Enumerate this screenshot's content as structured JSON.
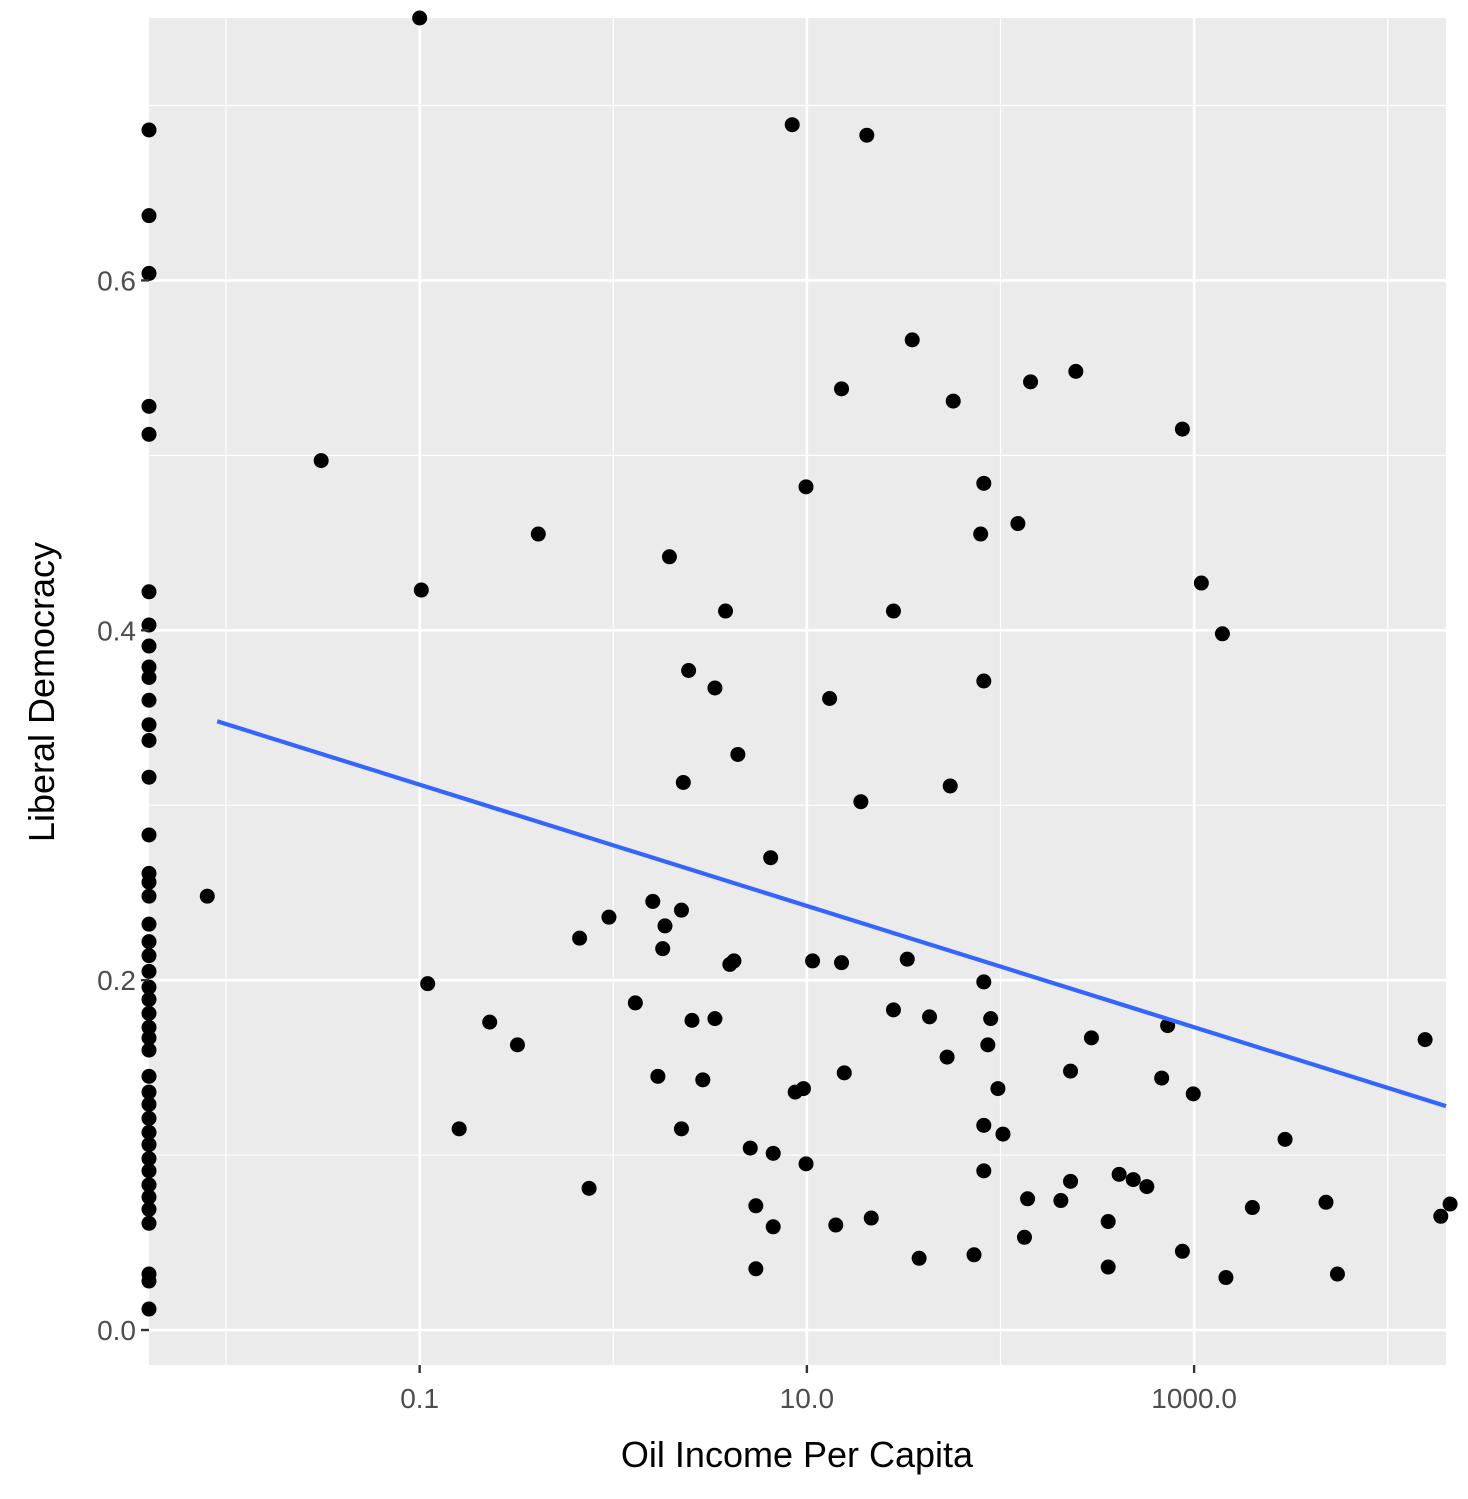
{
  "chart_data": {
    "type": "scatter",
    "xlabel": "Oil Income Per Capita",
    "ylabel": "Liberal Democracy",
    "x_scale": "log10",
    "xlim": [
      0.004,
      20000
    ],
    "ylim": [
      -0.02,
      0.75
    ],
    "x_ticks": [
      0.1,
      10.0,
      1000.0
    ],
    "x_tick_labels": [
      "0.1",
      "10.0",
      "1000.0"
    ],
    "y_ticks": [
      0.0,
      0.2,
      0.4,
      0.6
    ],
    "y_tick_labels": [
      "0.0",
      "0.2",
      "0.4",
      "0.6"
    ],
    "grid": true,
    "legend": "none",
    "colors": {
      "panel": "#ebebeb",
      "grid": "#ffffff",
      "point": "#000000",
      "trend": "#3366ff"
    },
    "points": [
      [
        0.004,
        0.686
      ],
      [
        0.004,
        0.637
      ],
      [
        0.004,
        0.604
      ],
      [
        0.004,
        0.528
      ],
      [
        0.004,
        0.512
      ],
      [
        0.004,
        0.422
      ],
      [
        0.004,
        0.403
      ],
      [
        0.004,
        0.391
      ],
      [
        0.004,
        0.379
      ],
      [
        0.004,
        0.373
      ],
      [
        0.004,
        0.36
      ],
      [
        0.004,
        0.346
      ],
      [
        0.004,
        0.337
      ],
      [
        0.004,
        0.316
      ],
      [
        0.004,
        0.283
      ],
      [
        0.004,
        0.261
      ],
      [
        0.004,
        0.256
      ],
      [
        0.004,
        0.248
      ],
      [
        0.004,
        0.232
      ],
      [
        0.004,
        0.222
      ],
      [
        0.004,
        0.214
      ],
      [
        0.004,
        0.205
      ],
      [
        0.004,
        0.196
      ],
      [
        0.004,
        0.189
      ],
      [
        0.004,
        0.181
      ],
      [
        0.004,
        0.173
      ],
      [
        0.004,
        0.167
      ],
      [
        0.004,
        0.16
      ],
      [
        0.004,
        0.145
      ],
      [
        0.004,
        0.136
      ],
      [
        0.004,
        0.129
      ],
      [
        0.004,
        0.121
      ],
      [
        0.004,
        0.113
      ],
      [
        0.004,
        0.106
      ],
      [
        0.004,
        0.098
      ],
      [
        0.004,
        0.091
      ],
      [
        0.004,
        0.083
      ],
      [
        0.004,
        0.076
      ],
      [
        0.004,
        0.069
      ],
      [
        0.004,
        0.061
      ],
      [
        0.004,
        0.032
      ],
      [
        0.004,
        0.028
      ],
      [
        0.004,
        0.012
      ],
      [
        0.008,
        0.248
      ],
      [
        0.031,
        0.497
      ],
      [
        0.1,
        0.75
      ],
      [
        0.102,
        0.423
      ],
      [
        0.11,
        0.198
      ],
      [
        0.16,
        0.115
      ],
      [
        0.23,
        0.176
      ],
      [
        0.32,
        0.163
      ],
      [
        0.41,
        0.455
      ],
      [
        0.67,
        0.224
      ],
      [
        0.75,
        0.081
      ],
      [
        0.95,
        0.236
      ],
      [
        1.3,
        0.187
      ],
      [
        1.6,
        0.245
      ],
      [
        1.7,
        0.145
      ],
      [
        1.8,
        0.218
      ],
      [
        1.85,
        0.231
      ],
      [
        1.95,
        0.442
      ],
      [
        2.25,
        0.24
      ],
      [
        2.25,
        0.115
      ],
      [
        2.3,
        0.313
      ],
      [
        2.45,
        0.377
      ],
      [
        2.55,
        0.177
      ],
      [
        2.9,
        0.143
      ],
      [
        3.35,
        0.367
      ],
      [
        3.35,
        0.178
      ],
      [
        3.8,
        0.411
      ],
      [
        4.0,
        0.209
      ],
      [
        4.2,
        0.211
      ],
      [
        4.4,
        0.329
      ],
      [
        5.1,
        0.104
      ],
      [
        5.45,
        0.071
      ],
      [
        5.45,
        0.035
      ],
      [
        6.5,
        0.27
      ],
      [
        6.7,
        0.101
      ],
      [
        6.7,
        0.059
      ],
      [
        8.4,
        0.689
      ],
      [
        8.7,
        0.136
      ],
      [
        9.6,
        0.138
      ],
      [
        9.9,
        0.095
      ],
      [
        9.9,
        0.482
      ],
      [
        10.7,
        0.211
      ],
      [
        13.1,
        0.361
      ],
      [
        14.1,
        0.06
      ],
      [
        15.1,
        0.538
      ],
      [
        15.1,
        0.21
      ],
      [
        15.6,
        0.147
      ],
      [
        19.0,
        0.302
      ],
      [
        20.4,
        0.683
      ],
      [
        21.5,
        0.064
      ],
      [
        28.0,
        0.411
      ],
      [
        28.0,
        0.183
      ],
      [
        33.0,
        0.212
      ],
      [
        35.0,
        0.566
      ],
      [
        38.0,
        0.041
      ],
      [
        43.0,
        0.179
      ],
      [
        53.0,
        0.156
      ],
      [
        55.0,
        0.311
      ],
      [
        57.0,
        0.531
      ],
      [
        73.0,
        0.043
      ],
      [
        79.0,
        0.455
      ],
      [
        82.0,
        0.484
      ],
      [
        82.0,
        0.371
      ],
      [
        82.0,
        0.199
      ],
      [
        82.0,
        0.117
      ],
      [
        82.0,
        0.091
      ],
      [
        86.0,
        0.163
      ],
      [
        89.0,
        0.178
      ],
      [
        97.0,
        0.138
      ],
      [
        103.0,
        0.112
      ],
      [
        123.0,
        0.461
      ],
      [
        133.0,
        0.053
      ],
      [
        138.0,
        0.075
      ],
      [
        143.0,
        0.542
      ],
      [
        205.0,
        0.074
      ],
      [
        230.0,
        0.148
      ],
      [
        230.0,
        0.085
      ],
      [
        245.0,
        0.548
      ],
      [
        295.0,
        0.167
      ],
      [
        360.0,
        0.062
      ],
      [
        360.0,
        0.036
      ],
      [
        410.0,
        0.089
      ],
      [
        485.0,
        0.086
      ],
      [
        570.0,
        0.082
      ],
      [
        680.0,
        0.144
      ],
      [
        730.0,
        0.174
      ],
      [
        870.0,
        0.045
      ],
      [
        870.0,
        0.515
      ],
      [
        990.0,
        0.135
      ],
      [
        1090.0,
        0.427
      ],
      [
        1400.0,
        0.398
      ],
      [
        1460.0,
        0.03
      ],
      [
        2000.0,
        0.07
      ],
      [
        2950.0,
        0.109
      ],
      [
        4800.0,
        0.073
      ],
      [
        5500.0,
        0.032
      ],
      [
        15600.0,
        0.166
      ],
      [
        18800.0,
        0.065
      ],
      [
        21000.0,
        0.072
      ]
    ],
    "trend_line": {
      "x_start": 0.009,
      "y_start": 0.348,
      "x_end": 20000,
      "y_end": 0.128
    }
  }
}
